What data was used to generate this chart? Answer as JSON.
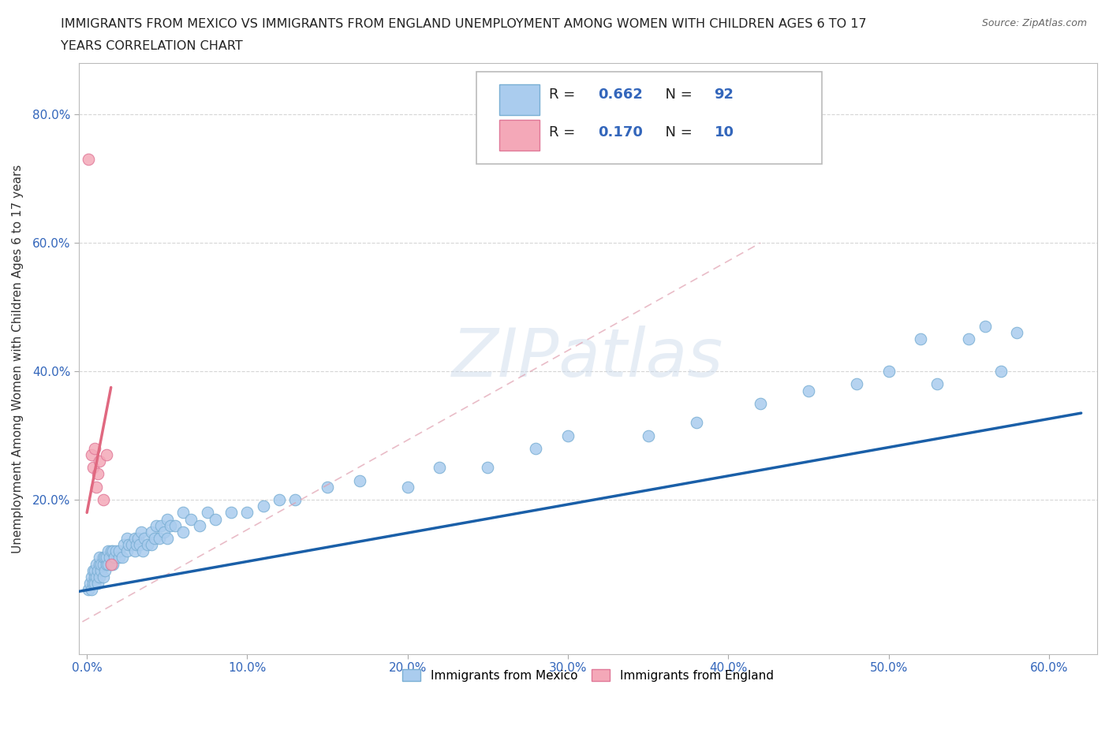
{
  "title_line1": "IMMIGRANTS FROM MEXICO VS IMMIGRANTS FROM ENGLAND UNEMPLOYMENT AMONG WOMEN WITH CHILDREN AGES 6 TO 17",
  "title_line2": "YEARS CORRELATION CHART",
  "source": "Source: ZipAtlas.com",
  "ylabel_text": "Unemployment Among Women with Children Ages 6 to 17 years",
  "xlim": [
    -0.005,
    0.63
  ],
  "ylim": [
    -0.04,
    0.88
  ],
  "xtick_labels": [
    "0.0%",
    "10.0%",
    "20.0%",
    "30.0%",
    "40.0%",
    "50.0%",
    "60.0%"
  ],
  "xtick_vals": [
    0.0,
    0.1,
    0.2,
    0.3,
    0.4,
    0.5,
    0.6
  ],
  "ytick_labels": [
    "20.0%",
    "40.0%",
    "60.0%",
    "80.0%"
  ],
  "ytick_vals": [
    0.2,
    0.4,
    0.6,
    0.8
  ],
  "mexico_color": "#aaccee",
  "england_color": "#f4a8b8",
  "mexico_edge": "#7aafd4",
  "england_edge": "#e07898",
  "trend_mexico_color": "#1a5fa8",
  "trend_england_color": "#e06880",
  "trend_england_dash_color": "#e0a0b0",
  "watermark": "ZIPatlas",
  "R_mexico": 0.662,
  "N_mexico": 92,
  "R_england": 0.17,
  "N_england": 10,
  "mexico_x": [
    0.001,
    0.002,
    0.003,
    0.003,
    0.004,
    0.004,
    0.005,
    0.005,
    0.005,
    0.006,
    0.006,
    0.007,
    0.007,
    0.008,
    0.008,
    0.008,
    0.009,
    0.009,
    0.01,
    0.01,
    0.01,
    0.011,
    0.011,
    0.012,
    0.012,
    0.013,
    0.013,
    0.014,
    0.015,
    0.015,
    0.016,
    0.016,
    0.017,
    0.018,
    0.02,
    0.02,
    0.022,
    0.023,
    0.025,
    0.025,
    0.026,
    0.028,
    0.03,
    0.03,
    0.031,
    0.032,
    0.033,
    0.034,
    0.035,
    0.036,
    0.038,
    0.04,
    0.04,
    0.042,
    0.043,
    0.045,
    0.046,
    0.048,
    0.05,
    0.05,
    0.052,
    0.055,
    0.06,
    0.06,
    0.065,
    0.07,
    0.075,
    0.08,
    0.09,
    0.1,
    0.11,
    0.12,
    0.13,
    0.15,
    0.17,
    0.2,
    0.22,
    0.25,
    0.28,
    0.3,
    0.35,
    0.38,
    0.42,
    0.45,
    0.48,
    0.5,
    0.52,
    0.53,
    0.55,
    0.56,
    0.57,
    0.58
  ],
  "mexico_y": [
    0.06,
    0.07,
    0.08,
    0.06,
    0.07,
    0.09,
    0.08,
    0.07,
    0.09,
    0.08,
    0.1,
    0.07,
    0.09,
    0.08,
    0.1,
    0.11,
    0.09,
    0.1,
    0.08,
    0.1,
    0.11,
    0.09,
    0.11,
    0.1,
    0.11,
    0.1,
    0.12,
    0.11,
    0.1,
    0.12,
    0.1,
    0.12,
    0.11,
    0.12,
    0.11,
    0.12,
    0.11,
    0.13,
    0.12,
    0.14,
    0.13,
    0.13,
    0.12,
    0.14,
    0.13,
    0.14,
    0.13,
    0.15,
    0.12,
    0.14,
    0.13,
    0.13,
    0.15,
    0.14,
    0.16,
    0.14,
    0.16,
    0.15,
    0.14,
    0.17,
    0.16,
    0.16,
    0.15,
    0.18,
    0.17,
    0.16,
    0.18,
    0.17,
    0.18,
    0.18,
    0.19,
    0.2,
    0.2,
    0.22,
    0.23,
    0.22,
    0.25,
    0.25,
    0.28,
    0.3,
    0.3,
    0.32,
    0.35,
    0.37,
    0.38,
    0.4,
    0.45,
    0.38,
    0.45,
    0.47,
    0.4,
    0.46
  ],
  "england_x": [
    0.001,
    0.003,
    0.004,
    0.005,
    0.006,
    0.007,
    0.008,
    0.01,
    0.012,
    0.015
  ],
  "england_y": [
    0.73,
    0.27,
    0.25,
    0.28,
    0.22,
    0.24,
    0.26,
    0.2,
    0.27,
    0.1
  ],
  "trend_mex_x0": -0.01,
  "trend_mex_x1": 0.62,
  "trend_mex_y0": 0.055,
  "trend_mex_y1": 0.335,
  "trend_eng_solid_x0": 0.0,
  "trend_eng_solid_x1": 0.015,
  "trend_eng_solid_y0": 0.18,
  "trend_eng_solid_y1": 0.375,
  "trend_eng_dash_x0": -0.01,
  "trend_eng_dash_x1": 0.42,
  "trend_eng_dash_y0": 0.0,
  "trend_eng_dash_y1": 0.6
}
